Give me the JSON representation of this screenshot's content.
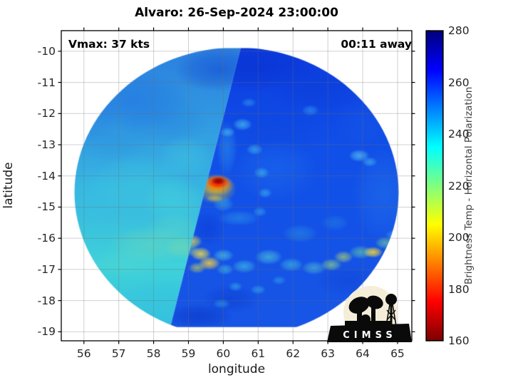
{
  "title": "Alvaro: 26-Sep-2024 23:00:00",
  "annotations": {
    "vmax": "Vmax: 37 kts",
    "time_away": "00:11 away"
  },
  "axes": {
    "xlabel": "longitude",
    "ylabel": "latitude",
    "xticks": [
      56,
      57,
      58,
      59,
      60,
      61,
      62,
      63,
      64,
      65
    ],
    "yticks": [
      -10,
      -11,
      -12,
      -13,
      -14,
      -15,
      -16,
      -17,
      -18,
      -19
    ],
    "xlim": [
      55.35,
      65.41
    ],
    "ylim": [
      -19.29,
      -9.34
    ],
    "grid": true,
    "tick_direction": "out",
    "border_color": "#000000",
    "grid_color": "rgba(110,110,110,0.32)"
  },
  "colorbar": {
    "label": "Brightness Temp - Horizontal Polarization",
    "ticks": [
      160,
      180,
      200,
      220,
      240,
      260,
      280
    ],
    "min": 160,
    "max": 280,
    "colormap": "jet_reversed",
    "gradient_stops": [
      [
        0.0,
        "#7f0000"
      ],
      [
        0.125,
        "#ff0000"
      ],
      [
        0.375,
        "#ffff00"
      ],
      [
        0.625,
        "#00ffff"
      ],
      [
        0.875,
        "#0000ff"
      ],
      [
        1.0,
        "#00007f"
      ]
    ]
  },
  "logo": {
    "text": "CIMSS",
    "bg_color": "#f4eed8",
    "silhouette_color": "#0a0a0a"
  },
  "chart_data": {
    "type": "heatmap",
    "description": "Microwave satellite brightness temperature (K) swath of tropical cyclone Alvaro; circular scan footprint built from two swath passes split by a diagonal seam; deep convection (cold brightness temp ~160-200K, red/yellow) near the center at about 59.8E,-14.2, a warm-toned rainband arc near -16.5 to -17 latitude, and cyan spiral band spots in the blue (250-265K) environment.",
    "title": "Alvaro: 26-Sep-2024 23:00:00",
    "xlabel": "longitude",
    "ylabel": "latitude",
    "xlim": [
      55.35,
      65.41
    ],
    "ylim": [
      -19.29,
      -9.34
    ],
    "value_range_K": [
      160,
      280
    ],
    "footprint_circle": {
      "center_lon": 60.38,
      "center_lat": -14.53,
      "radius_deg": 4.65
    },
    "seam_line": [
      [
        60.5,
        -9.9
      ],
      [
        58.48,
        -18.85
      ]
    ],
    "swath_bases": {
      "left": {
        "stops": [
          [
            0,
            "#2b7fe0"
          ],
          [
            0.45,
            "#36b0e2"
          ],
          [
            0.75,
            "#3fd2da"
          ],
          [
            1,
            "#32bce0"
          ]
        ]
      },
      "right": {
        "stops": [
          [
            0,
            "#0c3ce0"
          ],
          [
            0.35,
            "#1150e8"
          ],
          [
            1,
            "#1856e6"
          ]
        ]
      }
    },
    "features": [
      [
        57.4,
        -11.6,
        1.6,
        1.0,
        "#1f6ee4",
        0.5,
        "L"
      ],
      [
        56.2,
        -12.0,
        0.8,
        1.0,
        "#2678e2",
        0.4,
        "L"
      ],
      [
        56.8,
        -12.8,
        1.2,
        0.8,
        "#2a8ce0",
        0.4,
        "L"
      ],
      [
        58.3,
        -12.2,
        1.3,
        0.9,
        "#2580e2",
        0.45,
        "L"
      ],
      [
        59.9,
        -10.6,
        1.3,
        0.7,
        "#0c38d0",
        0.45,
        "L"
      ],
      [
        56.3,
        -14.6,
        1.0,
        0.9,
        "#38c2e2",
        0.5,
        "L"
      ],
      [
        57.6,
        -14.3,
        1.4,
        1.0,
        "#3ecede",
        0.45,
        "L"
      ],
      [
        58.6,
        -14.8,
        0.9,
        0.8,
        "#44d6dc",
        0.5,
        "L"
      ],
      [
        58.9,
        -13.4,
        0.8,
        0.7,
        "#40cce2",
        0.4,
        "L"
      ],
      [
        57.9,
        -16.2,
        1.2,
        0.6,
        "#7fdfa8",
        0.35,
        "L"
      ],
      [
        58.6,
        -15.7,
        0.8,
        0.5,
        "#66dcc0",
        0.35,
        "L"
      ],
      [
        57.2,
        -16.8,
        1.0,
        0.5,
        "#58d8cc",
        0.35,
        "L"
      ],
      [
        58.9,
        -16.3,
        0.6,
        0.4,
        "#a8e388",
        0.3,
        "L"
      ],
      [
        58.3,
        -17.8,
        1.2,
        0.5,
        "#34c4e0",
        0.45,
        "L"
      ],
      [
        60.9,
        -10.5,
        1.8,
        0.8,
        "#0830cc",
        0.55,
        "R"
      ],
      [
        62.6,
        -11.2,
        1.3,
        0.8,
        "#0b3cd4",
        0.4,
        "R"
      ],
      [
        61.4,
        -12.6,
        1.5,
        0.9,
        "#0d44da",
        0.35,
        "R"
      ],
      [
        61.5,
        -13.8,
        1.2,
        1.0,
        "#1e6cec",
        0.5,
        "R"
      ],
      [
        64.6,
        -14.6,
        0.9,
        1.5,
        "#2576ea",
        0.45,
        "R"
      ],
      [
        64.0,
        -12.3,
        0.8,
        0.8,
        "#1a5ce8",
        0.4,
        "R"
      ],
      [
        60.1,
        -13.1,
        0.3,
        0.9,
        "#2f96e8",
        0.5,
        "R"
      ],
      [
        60.55,
        -12.35,
        0.28,
        0.2,
        "#55d8f4",
        0.6,
        "R"
      ],
      [
        60.12,
        -12.6,
        0.22,
        0.16,
        "#55d8f4",
        0.5,
        "R"
      ],
      [
        60.9,
        -13.15,
        0.24,
        0.18,
        "#4fd4f4",
        0.5,
        "R"
      ],
      [
        61.1,
        -13.9,
        0.22,
        0.18,
        "#46ccf2",
        0.55,
        "R"
      ],
      [
        61.2,
        -14.55,
        0.2,
        0.16,
        "#46ccf2",
        0.5,
        "R"
      ],
      [
        61.05,
        -15.15,
        0.2,
        0.16,
        "#40c8f0",
        0.45,
        "R"
      ],
      [
        62.5,
        -11.9,
        0.25,
        0.18,
        "#3fb8f0",
        0.45,
        "R"
      ],
      [
        60.73,
        -11.65,
        0.22,
        0.15,
        "#3fb8f0",
        0.45,
        "R"
      ],
      [
        63.9,
        -13.35,
        0.3,
        0.2,
        "#65dcf6",
        0.6,
        "R"
      ],
      [
        64.2,
        -13.55,
        0.22,
        0.16,
        "#55d4f2",
        0.5,
        "R"
      ],
      [
        59.55,
        -15.7,
        0.5,
        0.55,
        "#0a38d2",
        0.5,
        "R"
      ],
      [
        60.45,
        -15.35,
        0.6,
        0.25,
        "#2f9ce8",
        0.5,
        "R"
      ],
      [
        60.0,
        -14.9,
        0.3,
        0.25,
        "#35b4ec",
        0.55,
        "R"
      ],
      [
        62.2,
        -15.85,
        0.5,
        0.3,
        "#2e9ce0",
        0.45,
        "R"
      ],
      [
        63.2,
        -15.5,
        0.4,
        0.25,
        "#2a90e0",
        0.4,
        "R"
      ],
      [
        60.2,
        -17.95,
        0.8,
        0.45,
        "#0a38cc",
        0.45,
        "R"
      ],
      [
        59.3,
        -18.5,
        1.0,
        0.4,
        "#0830bc",
        0.5,
        "R"
      ],
      [
        63.6,
        -17.35,
        1.0,
        0.5,
        "#0d40d2",
        0.4,
        "R"
      ],
      [
        59.1,
        -16.1,
        0.3,
        0.22,
        "#e8e44c",
        0.75,
        "R"
      ],
      [
        58.95,
        -16.35,
        0.35,
        0.25,
        "#90dc8c",
        0.55,
        "R"
      ],
      [
        59.35,
        -16.5,
        0.3,
        0.22,
        "#ffe83c",
        0.8,
        "R"
      ],
      [
        59.6,
        -16.8,
        0.32,
        0.22,
        "#ffd838",
        0.8,
        "R"
      ],
      [
        59.25,
        -16.95,
        0.25,
        0.18,
        "#d8e04c",
        0.6,
        "R"
      ],
      [
        60.0,
        -16.55,
        0.3,
        0.2,
        "#58d8e0",
        0.6,
        "R"
      ],
      [
        60.05,
        -17.0,
        0.25,
        0.18,
        "#48d0e8",
        0.55,
        "R"
      ],
      [
        60.6,
        -16.9,
        0.35,
        0.22,
        "#44cce8",
        0.6,
        "R"
      ],
      [
        61.3,
        -16.6,
        0.4,
        0.25,
        "#55d4d8",
        0.6,
        "R"
      ],
      [
        61.95,
        -16.85,
        0.35,
        0.22,
        "#48cce4",
        0.55,
        "R"
      ],
      [
        62.6,
        -16.95,
        0.35,
        0.22,
        "#58d0d8",
        0.55,
        "R"
      ],
      [
        63.1,
        -16.85,
        0.3,
        0.2,
        "#98e07c",
        0.65,
        "R"
      ],
      [
        63.45,
        -16.6,
        0.28,
        0.2,
        "#c8e858",
        0.6,
        "R"
      ],
      [
        63.95,
        -16.45,
        0.35,
        0.22,
        "#68d8a8",
        0.6,
        "R"
      ],
      [
        64.3,
        -16.45,
        0.28,
        0.18,
        "#ffdc30",
        0.85,
        "R"
      ],
      [
        64.65,
        -16.15,
        0.3,
        0.2,
        "#80dc94",
        0.6,
        "R"
      ],
      [
        64.9,
        -15.9,
        0.25,
        0.18,
        "#48c8e0",
        0.5,
        "R"
      ],
      [
        60.35,
        -17.55,
        0.2,
        0.15,
        "#3cc4e8",
        0.5,
        "R"
      ],
      [
        61.0,
        -17.65,
        0.22,
        0.15,
        "#3cc4e8",
        0.5,
        "R"
      ],
      [
        61.6,
        -17.35,
        0.2,
        0.14,
        "#38c0e8",
        0.45,
        "R"
      ],
      [
        59.95,
        -18.1,
        0.25,
        0.15,
        "#34bce8",
        0.45,
        "R"
      ],
      [
        59.75,
        -14.72,
        0.25,
        0.12,
        "#ffd830",
        0.5,
        "R"
      ],
      [
        59.78,
        -14.42,
        0.6,
        0.5,
        "#ffd800",
        0.55,
        "R"
      ],
      [
        59.82,
        -14.3,
        0.5,
        0.34,
        "#ffb000",
        0.8,
        "R"
      ],
      [
        59.84,
        -14.24,
        0.4,
        0.26,
        "#ff6400",
        0.9,
        "R"
      ],
      [
        59.85,
        -14.2,
        0.3,
        0.2,
        "#e81800",
        1.0,
        "R"
      ],
      [
        59.86,
        -14.16,
        0.2,
        0.12,
        "#8f0000",
        1.0,
        "R"
      ]
    ],
    "legend_position": "right_colorbar"
  }
}
